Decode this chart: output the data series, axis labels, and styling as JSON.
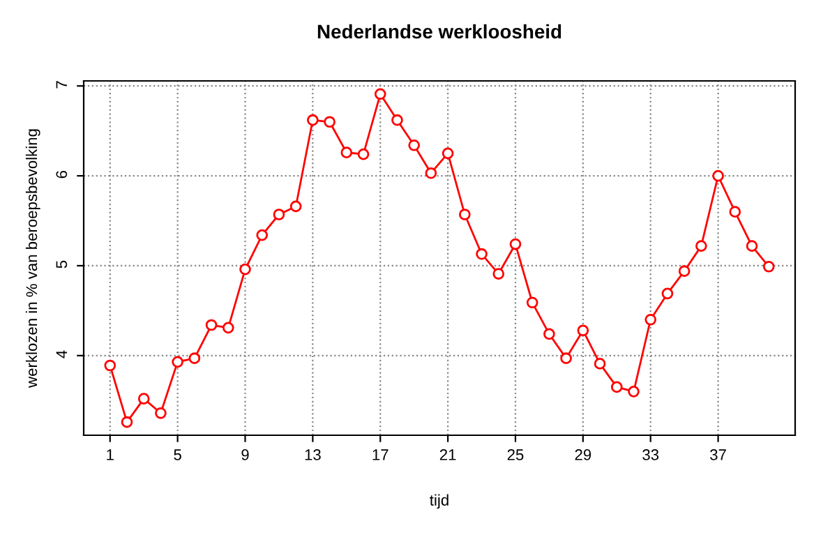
{
  "chart_data": {
    "type": "line",
    "title": "Nederlandse werkloosheid",
    "xlabel": "tijd",
    "ylabel": "werklozen in % van beroepsbevolking",
    "x": [
      1,
      2,
      3,
      4,
      5,
      6,
      7,
      8,
      9,
      10,
      11,
      12,
      13,
      14,
      15,
      16,
      17,
      18,
      19,
      20,
      21,
      22,
      23,
      24,
      25,
      26,
      27,
      28,
      29,
      30,
      31,
      32,
      33,
      34,
      35,
      36,
      37,
      38,
      39,
      40
    ],
    "series": [
      {
        "color": "#ff0000",
        "values": [
          3.89,
          3.26,
          3.52,
          3.36,
          3.93,
          3.97,
          4.34,
          4.31,
          4.96,
          5.34,
          5.57,
          5.66,
          6.62,
          6.6,
          6.26,
          6.24,
          6.91,
          6.62,
          6.34,
          6.03,
          6.25,
          5.57,
          5.13,
          4.91,
          5.24,
          4.59,
          4.24,
          3.97,
          4.28,
          3.91,
          3.65,
          3.6,
          4.4,
          4.69,
          4.94,
          5.22,
          6.0,
          5.6,
          5.22,
          4.99
        ]
      }
    ],
    "xlim": [
      -0.56,
      41.56
    ],
    "ylim": [
      3.114,
      7.056
    ],
    "xticks": [
      1,
      5,
      9,
      13,
      17,
      21,
      25,
      29,
      33,
      37
    ],
    "yticks": [
      4,
      5,
      6,
      7
    ],
    "grid": true,
    "marker": "circle",
    "line_style": "solid"
  }
}
